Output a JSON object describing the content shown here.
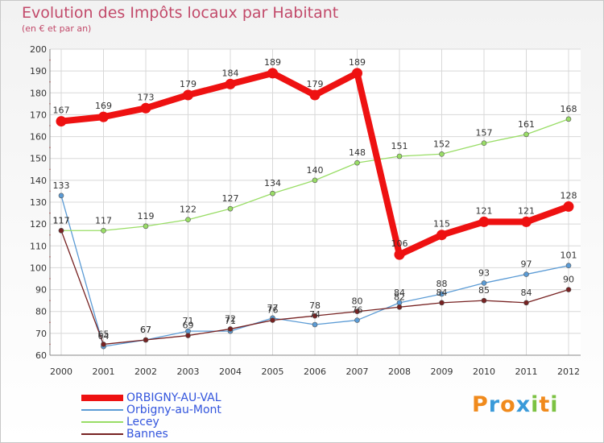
{
  "chart_data": {
    "type": "line",
    "title": "Evolution des Impôts locaux par Habitant",
    "subtitle": "(en € et par an)",
    "xlabel": "",
    "ylabel": "",
    "ylim": [
      60,
      200
    ],
    "yticks": [
      60,
      70,
      80,
      90,
      100,
      110,
      120,
      130,
      140,
      150,
      160,
      170,
      180,
      190,
      200
    ],
    "categories": [
      "2000",
      "2001",
      "2002",
      "2003",
      "2004",
      "2005",
      "2006",
      "2007",
      "2008",
      "2009",
      "2010",
      "2011",
      "2012"
    ],
    "grid": true,
    "series": [
      {
        "name": "ORBIGNY-AU-VAL",
        "color": "#ee1111",
        "values": [
          167,
          169,
          173,
          179,
          184,
          189,
          179,
          189,
          106,
          115,
          121,
          121,
          128
        ]
      },
      {
        "name": "Orbigny-au-Mont",
        "color": "#5b9bd5",
        "values": [
          133,
          64,
          67,
          71,
          71,
          77,
          74,
          76,
          84,
          88,
          93,
          97,
          101
        ]
      },
      {
        "name": "Lecey",
        "color": "#99dd66",
        "values": [
          117,
          117,
          119,
          122,
          127,
          134,
          140,
          148,
          151,
          152,
          157,
          161,
          168
        ]
      },
      {
        "name": "Bannes",
        "color": "#772222",
        "values": [
          117,
          65,
          67,
          69,
          72,
          76,
          78,
          80,
          82,
          84,
          85,
          84,
          90
        ]
      }
    ]
  },
  "legend": {
    "items": [
      {
        "label": "ORBIGNY-AU-VAL",
        "color": "#ee1111"
      },
      {
        "label": "Orbigny-au-Mont",
        "color": "#5b9bd5"
      },
      {
        "label": "Lecey",
        "color": "#99dd66"
      },
      {
        "label": "Bannes",
        "color": "#772222"
      }
    ]
  },
  "brand": {
    "text": "Proxiti",
    "letters": [
      {
        "ch": "P",
        "color": "#f08a1c"
      },
      {
        "ch": "r",
        "color": "#3a9ad9"
      },
      {
        "ch": "o",
        "color": "#f08a1c"
      },
      {
        "ch": "x",
        "color": "#3a9ad9"
      },
      {
        "ch": "i",
        "color": "#7cc242"
      },
      {
        "ch": "t",
        "color": "#f08a1c"
      },
      {
        "ch": "i",
        "color": "#7cc242"
      }
    ]
  }
}
